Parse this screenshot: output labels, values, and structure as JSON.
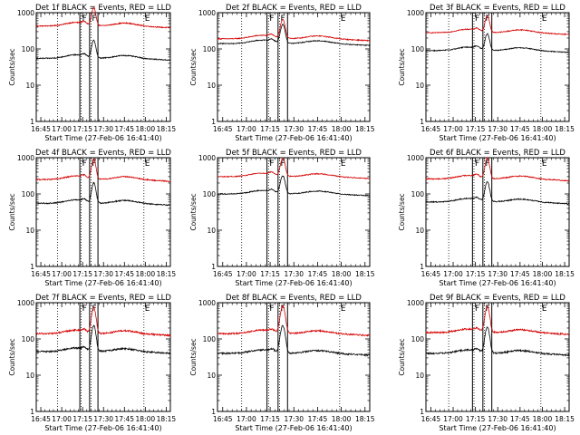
{
  "chart_data": {
    "type": "line",
    "shared": {
      "xlabel": "Start Time (27-Feb-06 16:41:40)",
      "ylabel": "Counts/sec",
      "x_ticks": [
        "16:45",
        "17:00",
        "17:15",
        "17:30",
        "17:45",
        "18:00",
        "18:15"
      ],
      "x_tick_minutes": [
        45,
        60,
        75,
        90,
        105,
        120,
        135
      ],
      "xlim_minutes": [
        41.7,
        138
      ],
      "y_scale": "log",
      "ylim": [
        1,
        1000
      ],
      "y_ticks": [
        "1",
        "10",
        "100",
        "1000"
      ],
      "y_tick_values": [
        1,
        10,
        100,
        1000
      ],
      "series_colors": {
        "events": "#000000",
        "lld": "#d40000"
      },
      "markers": {
        "dotted_minutes": [
          57,
          74,
          81,
          119
        ],
        "solid_minutes": [
          73,
          80,
          86
        ],
        "labels": [
          {
            "text": "F",
            "at_minute": 74
          },
          {
            "text": "F",
            "at_minute": 81
          },
          {
            "text": "E",
            "at_minute": 119
          }
        ]
      }
    },
    "panels": [
      {
        "title": "Det 1f BLACK = Events, RED = LLD",
        "events_base": 55,
        "lld_base": 430,
        "peak_factor": 3.0,
        "noise": 0.03
      },
      {
        "title": "Det 2f BLACK = Events, RED = LLD",
        "events_base": 140,
        "lld_base": 190,
        "peak_factor": 3.2,
        "noise": 0.03
      },
      {
        "title": "Det 3f BLACK = Events, RED = LLD",
        "events_base": 90,
        "lld_base": 280,
        "peak_factor": 2.8,
        "noise": 0.03
      },
      {
        "title": "Det 4f BLACK = Events, RED = LLD",
        "events_base": 55,
        "lld_base": 250,
        "peak_factor": 3.5,
        "noise": 0.035
      },
      {
        "title": "Det 5f BLACK = Events, RED = LLD",
        "events_base": 100,
        "lld_base": 300,
        "peak_factor": 3.0,
        "noise": 0.03
      },
      {
        "title": "Det 6f BLACK = Events, RED = LLD",
        "events_base": 60,
        "lld_base": 260,
        "peak_factor": 3.5,
        "noise": 0.035
      },
      {
        "title": "Det 7f BLACK = Events, RED = LLD",
        "events_base": 45,
        "lld_base": 140,
        "peak_factor": 5.0,
        "noise": 0.05
      },
      {
        "title": "Det 8f BLACK = Events, RED = LLD",
        "events_base": 40,
        "lld_base": 140,
        "peak_factor": 5.5,
        "noise": 0.05
      },
      {
        "title": "Det 9f BLACK = Events, RED = LLD",
        "events_base": 40,
        "lld_base": 150,
        "peak_factor": 5.0,
        "noise": 0.05
      }
    ]
  }
}
